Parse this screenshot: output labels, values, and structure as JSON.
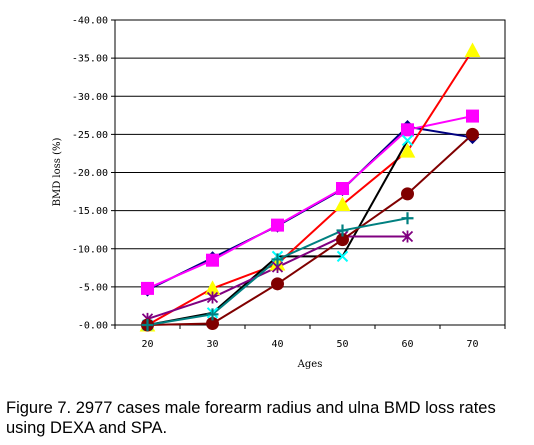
{
  "chart_data": {
    "type": "line",
    "title": "",
    "xlabel": "Ages",
    "ylabel": "BMD loss (%)",
    "x": [
      20,
      30,
      40,
      50,
      60,
      70
    ],
    "x_tick_labels": [
      "20",
      "30",
      "40",
      "50",
      "60",
      "70"
    ],
    "y_tick_labels": [
      "-0.00",
      "-5.00",
      "-10.00",
      "-15.00",
      "-20.00",
      "-25.00",
      "-30.00",
      "-35.00",
      "-40.00"
    ],
    "ylim": [
      0,
      40
    ],
    "y_axis_reversed": true,
    "grid": "horizontal",
    "legend": "none",
    "series": [
      {
        "color": "#000080",
        "marker": "diamond",
        "line_color": "#000080",
        "values": [
          4.6,
          8.8,
          13.0,
          17.8,
          26.0,
          24.6
        ]
      },
      {
        "color": "#ff00ff",
        "marker": "square",
        "line_color": "#ff00ff",
        "values": [
          4.8,
          8.5,
          13.1,
          17.9,
          25.6,
          27.4
        ]
      },
      {
        "color": "#ffff00",
        "marker": "triangle",
        "line_color": "#ff0000",
        "values": [
          0.0,
          4.8,
          8.0,
          15.8,
          22.8,
          36.0
        ]
      },
      {
        "color": "#00ffff",
        "marker": "x",
        "line_color": "#000000",
        "values": [
          0.0,
          1.6,
          9.0,
          9.0,
          24.2,
          null
        ]
      },
      {
        "color": "#800080",
        "marker": "star",
        "line_color": "#800080",
        "values": [
          0.8,
          3.6,
          7.6,
          11.6,
          11.6,
          null
        ]
      },
      {
        "color": "#800000",
        "marker": "circle",
        "line_color": "#800000",
        "values": [
          0.0,
          0.2,
          5.4,
          11.2,
          17.2,
          25.0
        ]
      },
      {
        "color": "#008080",
        "marker": "plus",
        "line_color": "#008080",
        "values": [
          0.0,
          1.4,
          8.6,
          12.4,
          14.0,
          null
        ]
      }
    ]
  },
  "caption": "Figure 7. 2977 cases male forearm radius and ulna BMD loss rates using DEXA and SPA."
}
